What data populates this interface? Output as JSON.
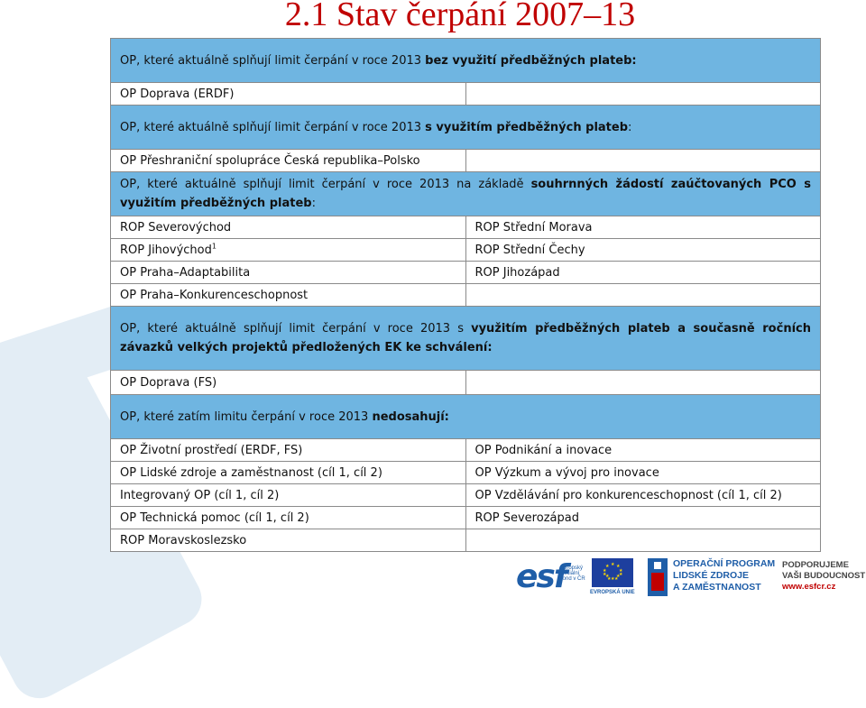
{
  "slide_title": "2.1 Stav čerpání 2007–13",
  "table": {
    "group1": {
      "header_plain": "OP, které aktuálně splňují limit čerpání v roce 2013 ",
      "header_bold": "bez využití předběžných plateb:",
      "rows": [
        [
          "OP Doprava (ERDF)",
          ""
        ]
      ]
    },
    "group2": {
      "header_plain": "OP, které aktuálně splňují limit čerpání v roce 2013 ",
      "header_bold": "s využitím předběžných plateb",
      "header_tail": ":",
      "rows": [
        [
          "OP Přeshraniční spolupráce Česká republika–Polsko",
          ""
        ]
      ]
    },
    "group3": {
      "header_plain": "OP, které aktuálně splňují limit čerpání v roce 2013 na základě ",
      "header_bold": "souhrnných žádostí zaúčtovaných PCO s využitím předběžných plateb",
      "header_tail": ":",
      "rows": [
        [
          "ROP Severovýchod",
          "ROP Střední Morava"
        ],
        [
          "ROP Jihovýchod",
          "ROP Střední Čechy"
        ],
        [
          "OP Praha–Adaptabilita",
          "ROP Jihozápad"
        ],
        [
          "OP Praha–Konkurenceschopnost",
          ""
        ]
      ],
      "footnote_mark": "1"
    },
    "group4": {
      "header_plain": "OP, které aktuálně splňují limit čerpání v roce 2013 s ",
      "header_bold": "využitím předběžných plateb a současně ročních závazků velkých projektů předložených EK ke schválení:",
      "rows": [
        [
          "OP Doprava (FS)",
          ""
        ]
      ]
    },
    "group5": {
      "header_plain": "OP, které zatím limitu čerpání v roce 2013 ",
      "header_bold": "nedosahují:",
      "rows": [
        [
          "OP Životní prostředí (ERDF, FS)",
          "OP Podnikání a inovace"
        ],
        [
          "OP Lidské zdroje a zaměstnanost (cíl 1, cíl 2)",
          "OP Výzkum a vývoj pro inovace"
        ],
        [
          "Integrovaný OP (cíl 1, cíl 2)",
          "OP Vzdělávání pro konkurenceschopnost (cíl 1, cíl 2)"
        ],
        [
          "OP Technická pomoc (cíl 1, cíl 2)",
          "ROP Severozápad"
        ],
        [
          "ROP Moravskoslezsko",
          ""
        ]
      ]
    }
  },
  "footer": {
    "esf_logo": "esf",
    "esf_text": "evropský sociální fond v ČR",
    "eu_label": "EVROPSKÁ UNIE",
    "op_lines": [
      "OPERAČNÍ PROGRAM",
      "LIDSKÉ ZDROJE",
      "A ZAMĚSTNANOST"
    ],
    "slogan_lines": [
      "PODPORUJEME",
      "VAŠI BUDOUCNOST"
    ],
    "url": "www.esfcr.cz"
  },
  "colors": {
    "header_bg": "#6fb5e1",
    "title": "#c00000",
    "logo_blue": "#1f5ea8"
  }
}
